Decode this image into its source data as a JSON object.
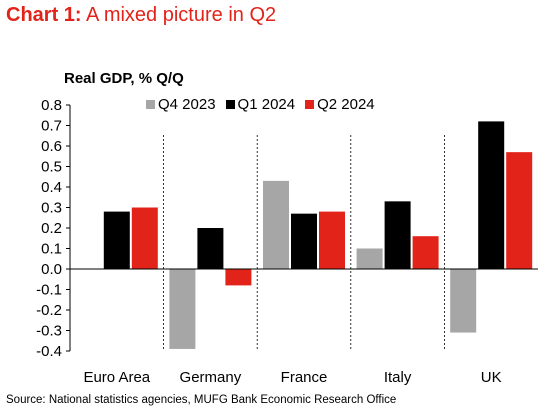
{
  "header": {
    "title_prefix": "Chart 1:",
    "title_rest": " A mixed picture in Q2"
  },
  "source": "Source: National statistics agencies, MUFG Bank Economic Research Office",
  "chart_data": {
    "type": "bar",
    "ylabel": "Real GDP, % Q/Q",
    "ylim": [
      -0.4,
      0.8
    ],
    "yticks": [
      0.8,
      0.7,
      0.6,
      0.5,
      0.4,
      0.3,
      0.2,
      0.1,
      0.0,
      -0.1,
      -0.2,
      -0.3,
      -0.4
    ],
    "ytick_labels": [
      "0.8",
      "0.7",
      "0.6",
      "0.5",
      "0.4",
      "0.3",
      "0.2",
      "0.1",
      "0.0",
      "-0.1",
      "-0.2",
      "-0.3",
      "-0.4"
    ],
    "categories": [
      "Euro Area",
      "Germany",
      "France",
      "Italy",
      "UK"
    ],
    "series": [
      {
        "name": "Q4 2023",
        "color": "#a6a6a6",
        "values": [
          0.0,
          -0.39,
          0.43,
          0.1,
          -0.31
        ]
      },
      {
        "name": "Q1 2024",
        "color": "#000000",
        "values": [
          0.28,
          0.2,
          0.27,
          0.33,
          0.72
        ]
      },
      {
        "name": "Q2 2024",
        "color": "#e2231a",
        "values": [
          0.3,
          -0.08,
          0.28,
          0.16,
          0.57
        ]
      }
    ],
    "legend_position": "top",
    "grid": false
  }
}
